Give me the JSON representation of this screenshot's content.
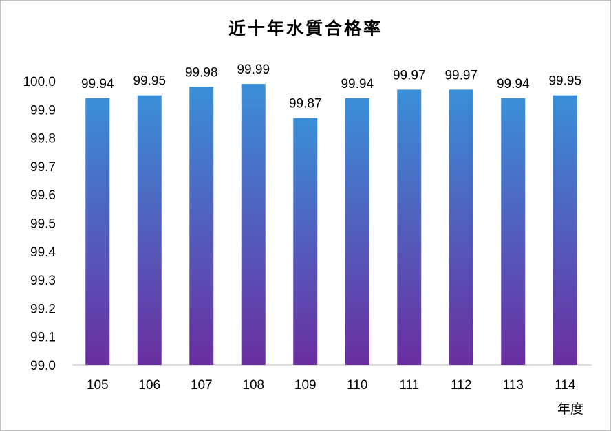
{
  "chart_data": {
    "type": "bar",
    "title": "近十年水質合格率",
    "xlabel": "年度",
    "ylabel": "",
    "categories": [
      "105",
      "106",
      "107",
      "108",
      "109",
      "110",
      "111",
      "112",
      "113",
      "114"
    ],
    "values": [
      99.94,
      99.95,
      99.98,
      99.99,
      99.87,
      99.94,
      99.97,
      99.97,
      99.94,
      99.95
    ],
    "data_labels": [
      "99.94",
      "99.95",
      "99.98",
      "99.99",
      "99.87",
      "99.94",
      "99.97",
      "99.97",
      "99.94",
      "99.95"
    ],
    "ylim": [
      99.0,
      100.0
    ],
    "yticks": [
      "99.0",
      "99.1",
      "99.2",
      "99.3",
      "99.4",
      "99.5",
      "99.6",
      "99.7",
      "99.8",
      "99.9",
      "100.0"
    ],
    "grid": false,
    "legend": "none",
    "colors": {
      "bar_top": "#3a8fd8",
      "bar_bottom": "#6a2ea0",
      "axis": "#bfbfbf"
    }
  }
}
